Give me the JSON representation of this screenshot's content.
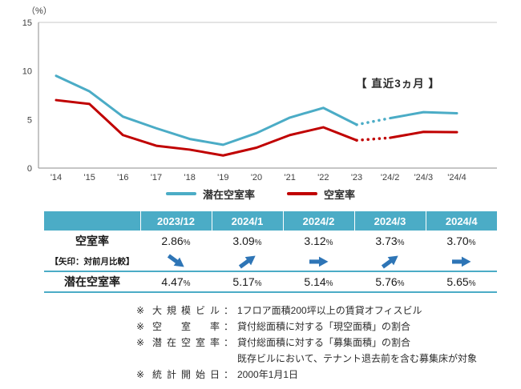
{
  "chart_data": {
    "type": "line",
    "categories": [
      "'14",
      "'15",
      "'16",
      "'17",
      "'18",
      "'19",
      "'20",
      "'21",
      "'22",
      "'23",
      "'24/2",
      "'24/3",
      "'24/4"
    ],
    "series": [
      {
        "name": "潜在空室率",
        "color": "#4BACC6",
        "values": [
          9.5,
          7.9,
          5.3,
          4.1,
          3.0,
          2.4,
          3.6,
          5.2,
          6.2,
          4.47,
          5.14,
          5.76,
          5.65
        ],
        "dotted_segment": [
          9,
          10
        ]
      },
      {
        "name": "空室率",
        "color": "#C00000",
        "values": [
          7.0,
          6.6,
          3.4,
          2.3,
          1.9,
          1.3,
          2.1,
          3.4,
          4.2,
          2.86,
          3.12,
          3.73,
          3.7
        ],
        "dotted_segment": [
          9,
          10
        ]
      }
    ],
    "ylim": [
      0,
      15
    ],
    "yticks": [
      0,
      5,
      10,
      15
    ],
    "y_unit": "（%）",
    "annotation": "【 直近3ヵ月 】",
    "legend_position": "bottom",
    "grid": false
  },
  "table": {
    "header_bg": "#4BACC6",
    "arrow_color": "#2E75B6",
    "percent": "%",
    "columns": [
      "2023/12",
      "2024/1",
      "2024/2",
      "2024/3",
      "2024/4"
    ],
    "rows": {
      "vacancy": {
        "label": "空室率",
        "values": [
          "2.86",
          "3.09",
          "3.12",
          "3.73",
          "3.70"
        ]
      },
      "arrows": {
        "label": "【矢印：対前月比較】",
        "directions": [
          "down",
          "up",
          "flat",
          "up",
          "flat"
        ]
      },
      "potential": {
        "label": "潜在空室率",
        "values": [
          "4.47",
          "5.17",
          "5.14",
          "5.76",
          "5.65"
        ]
      }
    }
  },
  "footnotes": {
    "marker": "※",
    "items": [
      {
        "label": "大規模ビル",
        "sep": "：",
        "text": "1フロア面積200坪以上の賃貸オフィスビル"
      },
      {
        "label": "空室率",
        "sep": "：",
        "text": "貸付総面積に対する「現空面積」の割合"
      },
      {
        "label": "潜在空室率",
        "sep": "：",
        "text": "貸付総面積に対する「募集面積」の割合"
      },
      {
        "label": "統計開始日",
        "sep": "：",
        "text": "2000年1月1日"
      }
    ],
    "continuation": "既存ビルにおいて、テナント退去前を含む募集床が対象"
  }
}
